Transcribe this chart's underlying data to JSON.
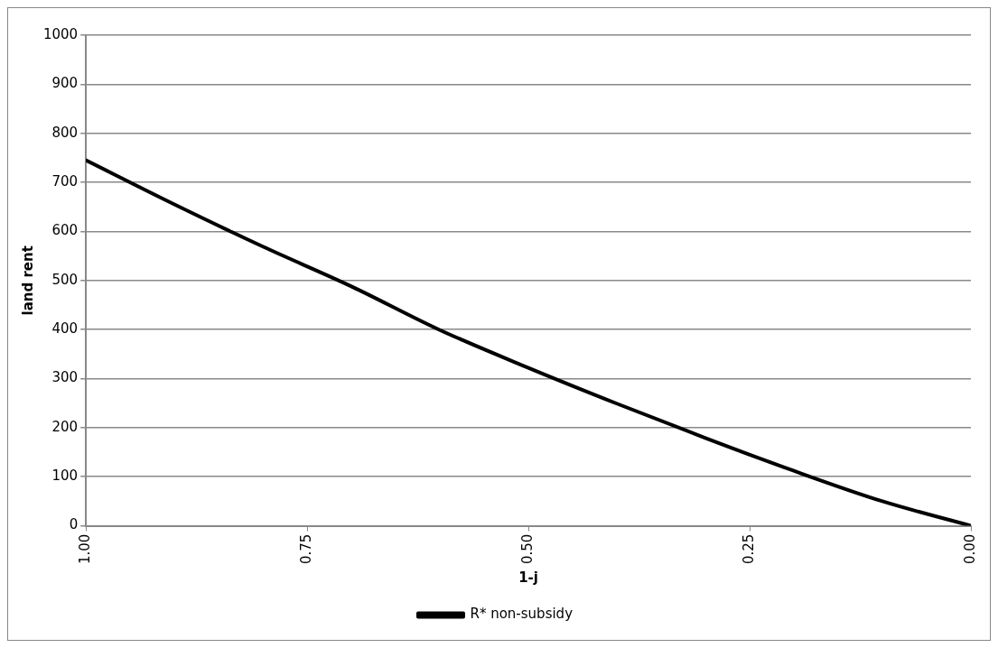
{
  "chart_data": {
    "type": "line",
    "xlabel": "1-j",
    "ylabel": "land rent",
    "x": [
      1.0,
      0.9,
      0.8,
      0.7,
      0.6,
      0.5,
      0.4,
      0.3,
      0.2,
      0.1,
      0.0
    ],
    "series": [
      {
        "name": "R* non-subsidy",
        "color": "#000000",
        "values": [
          745,
          655,
          569,
          488,
          399,
          322,
          249,
          179,
          112,
          50,
          0
        ]
      }
    ],
    "xlim": [
      1,
      0
    ],
    "xticks": [
      {
        "value": 1,
        "label": "1.00"
      },
      {
        "value": 0.75,
        "label": "0.75"
      },
      {
        "value": 0.5,
        "label": "0.50"
      },
      {
        "value": 0.25,
        "label": "0.25"
      },
      {
        "value": 0,
        "label": "0.00"
      }
    ],
    "ylim": [
      0,
      1000
    ],
    "yticks": [
      0,
      100,
      200,
      300,
      400,
      500,
      600,
      700,
      800,
      900,
      1000
    ],
    "grid": "y",
    "legend": "bottom",
    "marker": "none",
    "line_style": "solid"
  }
}
